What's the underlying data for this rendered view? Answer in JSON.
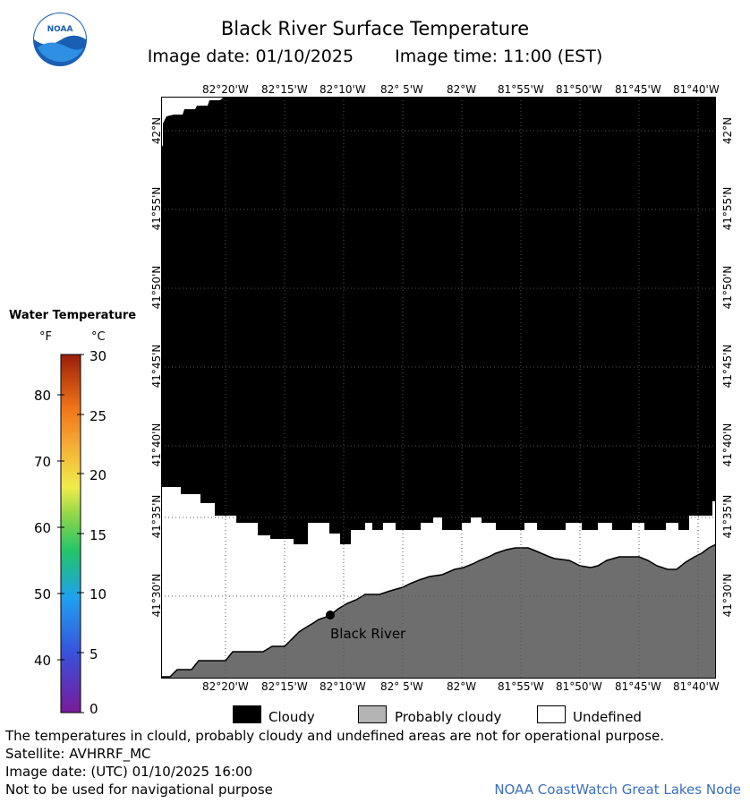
{
  "title": "Black River Surface Temperature",
  "image_date_label": "Image date: 01/10/2025",
  "image_time_label": "Image time: 11:00 (EST)",
  "logo_text": "NOAA",
  "longitude_ticks": [
    "82°20'W",
    "82°15'W",
    "82°10'W",
    "82° 5'W",
    "82°W",
    "81°55'W",
    "81°50'W",
    "81°45'W",
    "81°40'W"
  ],
  "latitude_ticks": [
    "42°N",
    "41°55'N",
    "41°50'N",
    "41°45'N",
    "41°40'N",
    "41°35'N",
    "41°30'N"
  ],
  "location_label": "Black River",
  "legend": {
    "title": "Water Temperature",
    "unit_f": "°F",
    "unit_c": "°C",
    "f_ticks": [
      "80",
      "70",
      "60",
      "50",
      "40"
    ],
    "c_ticks": [
      "30",
      "25",
      "20",
      "15",
      "10",
      "5",
      "0"
    ]
  },
  "key": {
    "cloudy": "Cloudy",
    "probably_cloudy": "Probably cloudy",
    "undefined": "Undefined",
    "cloudy_color": "#000000",
    "probably_cloudy_color": "#b4b4b4",
    "undefined_color": "#ffffff",
    "land_color": "#6e6e6e"
  },
  "footer": {
    "disclaimer": "The temperatures in clould, probably cloudy and undefined areas are not for operational purpose.",
    "satellite": "Satellite: AVHRRF_MC",
    "utc_date": "Image date: (UTC) 01/10/2025  16:00",
    "navigation": "Not to be used for navigational purpose",
    "credit": "NOAA CoastWatch Great Lakes Node"
  }
}
